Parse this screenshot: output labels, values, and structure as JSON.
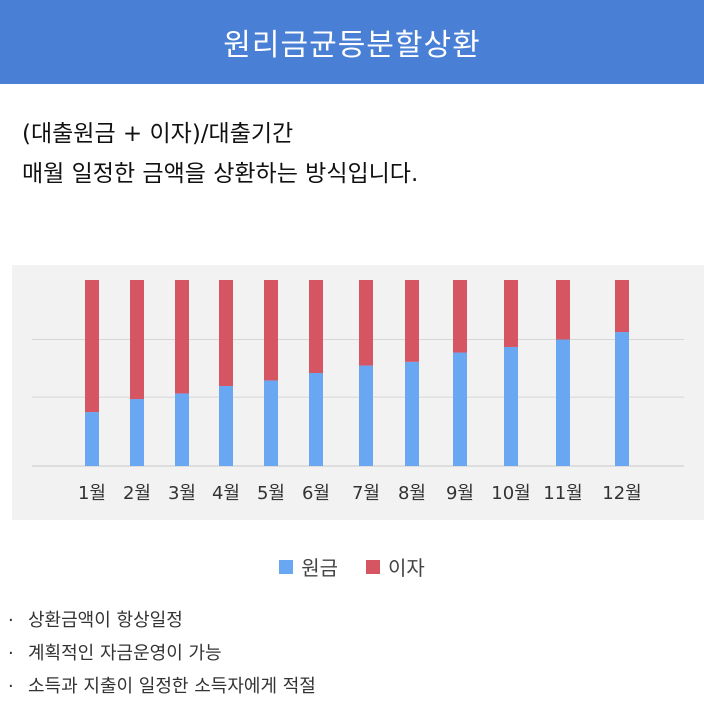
{
  "header": {
    "title": "원리금균등분할상환"
  },
  "description": {
    "line1": "(대출원금 + 이자)/대출기간",
    "line2": "매월 일정한 금액을 상환하는 방식입니다."
  },
  "colors": {
    "header": "#4a7fd6",
    "principal": "#6aa7f2",
    "interest": "#d65563"
  },
  "chart_data": {
    "type": "bar",
    "stacked": true,
    "categories": [
      "1월",
      "2월",
      "3월",
      "4월",
      "5월",
      "6월",
      "7월",
      "8월",
      "9월",
      "10월",
      "11월",
      "12월"
    ],
    "series": [
      {
        "name": "원금",
        "color": "#6aa7f2",
        "values": [
          29,
          36,
          39,
          43,
          46,
          50,
          54,
          56,
          61,
          64,
          68,
          72
        ]
      },
      {
        "name": "이자",
        "color": "#d65563",
        "values": [
          71,
          64,
          61,
          57,
          54,
          50,
          46,
          44,
          39,
          36,
          32,
          28
        ]
      }
    ],
    "ylim": [
      0,
      100
    ],
    "grid": true,
    "legend_position": "bottom"
  },
  "legend": {
    "principal": "원금",
    "interest": "이자"
  },
  "bullets": [
    "상환금액이 항상일정",
    "계획적인 자금운영이 가능",
    "소득과 지출이 일정한 소득자에게 적절"
  ]
}
